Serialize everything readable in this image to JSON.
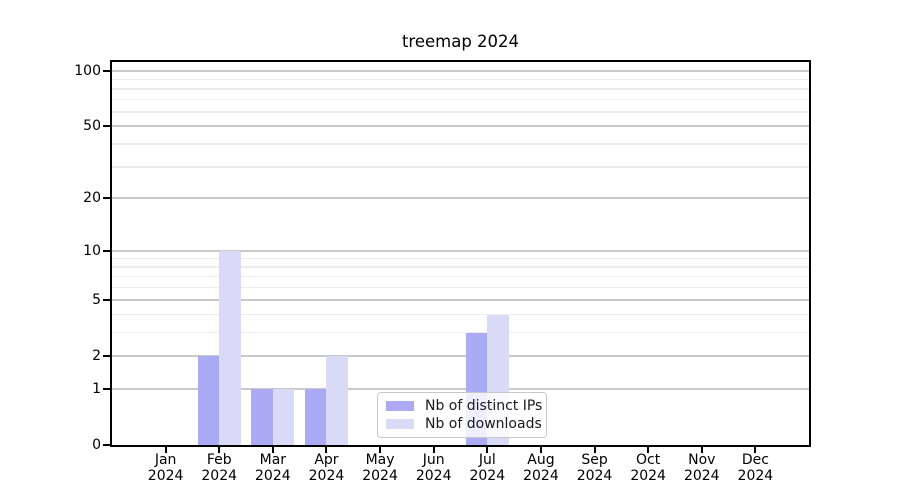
{
  "chart_data": {
    "type": "bar",
    "title": "treemap 2024",
    "categories": [
      "Jan",
      "Feb",
      "Mar",
      "Apr",
      "May",
      "Jun",
      "Jul",
      "Aug",
      "Sep",
      "Oct",
      "Nov",
      "Dec"
    ],
    "year_label": "2024",
    "series": [
      {
        "name": "Nb of distinct IPs",
        "color": "#aaaaf5",
        "values": [
          0,
          2,
          1,
          1,
          0,
          0,
          3,
          0,
          0,
          0,
          0,
          0
        ]
      },
      {
        "name": "Nb of downloads",
        "color": "#d9d9f8",
        "values": [
          0,
          10,
          1,
          2,
          0,
          0,
          4,
          0,
          0,
          0,
          0,
          0
        ]
      }
    ],
    "yscale": "log1p",
    "ylim": [
      0,
      112
    ],
    "yticks": [
      0,
      1,
      2,
      5,
      10,
      20,
      50,
      100
    ],
    "minor_gridlines": [
      3,
      4,
      6,
      7,
      8,
      9,
      30,
      40,
      60,
      70,
      80,
      90
    ],
    "grid": true,
    "legend_position": "lower center",
    "colors": {
      "major_grid": "#c9c9c9",
      "minor_grid": "#ececec",
      "spine": "#000000",
      "background": "#ffffff"
    }
  }
}
